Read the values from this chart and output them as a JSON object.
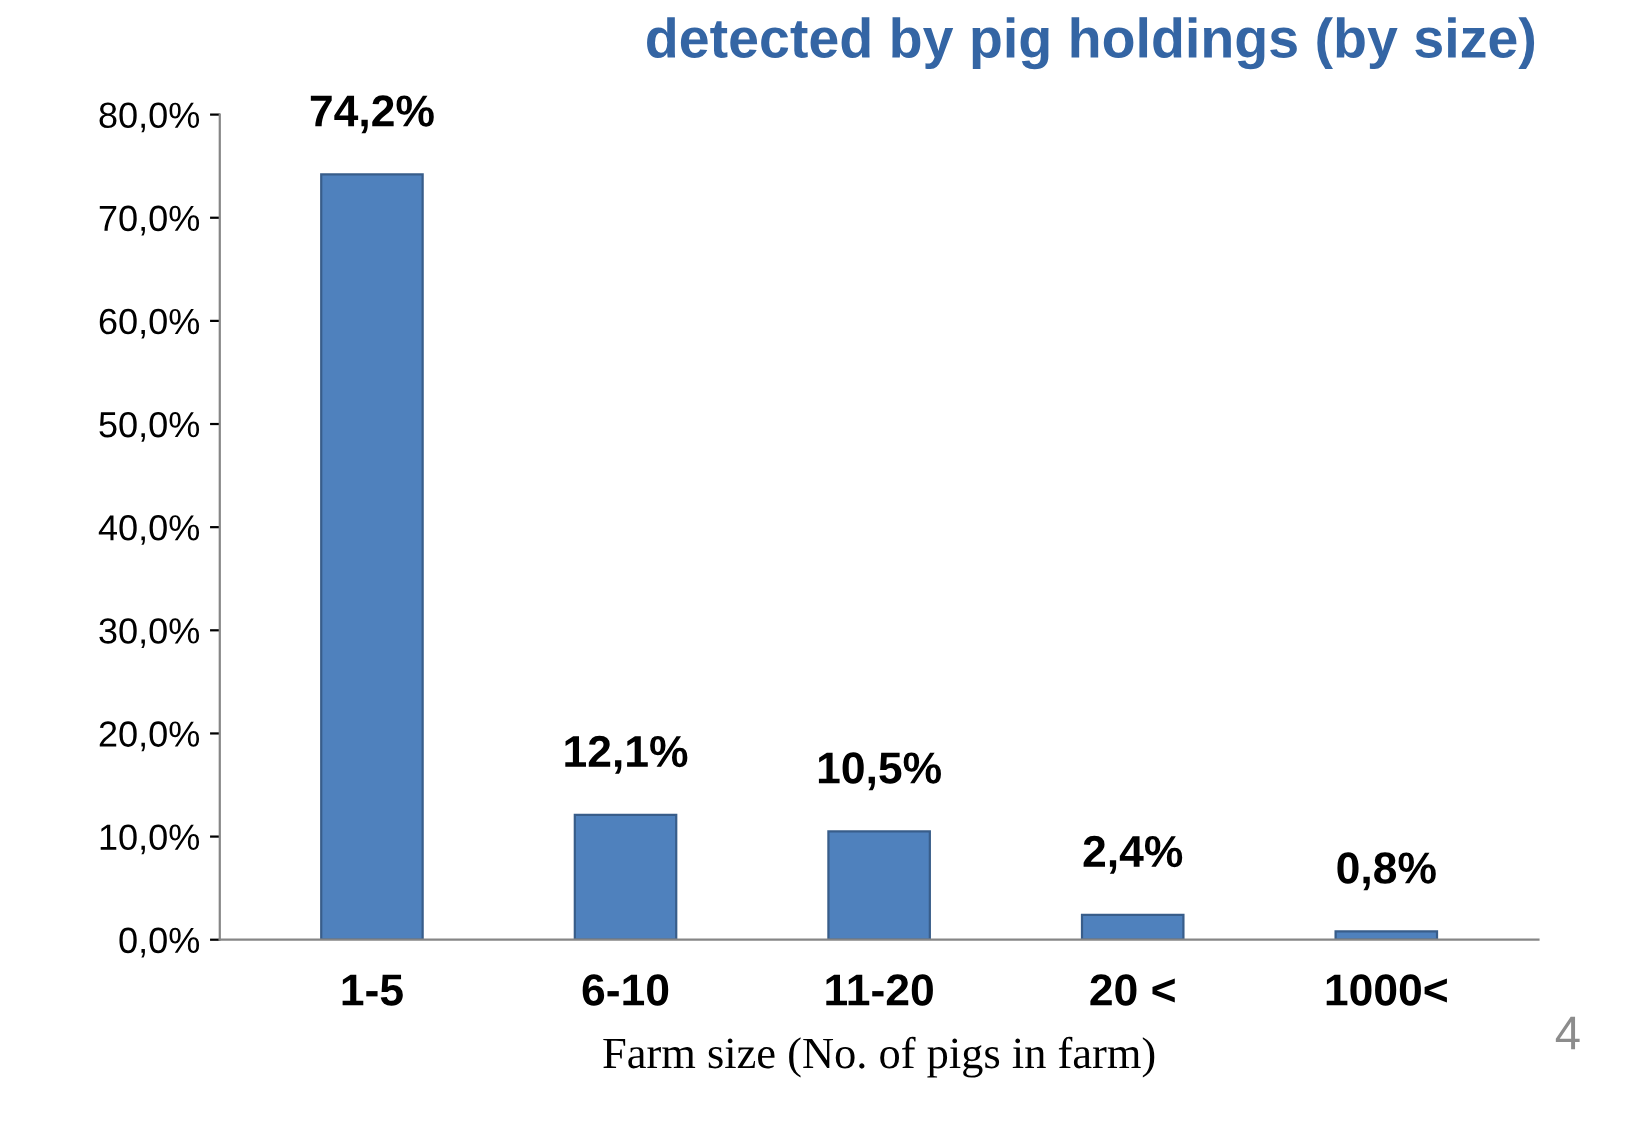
{
  "chart_data": {
    "type": "bar",
    "title": "detected by pig holdings (by size)",
    "xlabel": "Farm size (No. of pigs in farm)",
    "categories": [
      "1-5",
      "6-10",
      "11-20",
      "20 <",
      "1000<"
    ],
    "values": [
      74.2,
      12.1,
      10.5,
      2.4,
      0.8
    ],
    "value_labels": [
      "74,2%",
      "12,1%",
      "10,5%",
      "2,4%",
      "0,8%"
    ],
    "color": "#4f81bd",
    "ylim": [
      0,
      80
    ],
    "yticks": [
      {
        "value": 0,
        "label": "0,0%"
      },
      {
        "value": 10,
        "label": "10,0%"
      },
      {
        "value": 20,
        "label": "20,0%"
      },
      {
        "value": 30,
        "label": "30,0%"
      },
      {
        "value": 40,
        "label": "40,0%"
      },
      {
        "value": 50,
        "label": "50,0%"
      },
      {
        "value": 60,
        "label": "60,0%"
      },
      {
        "value": 70,
        "label": "70,0%"
      },
      {
        "value": 80,
        "label": "80,0%"
      }
    ],
    "grid": false,
    "legend": false,
    "annotations": [
      "4"
    ]
  }
}
